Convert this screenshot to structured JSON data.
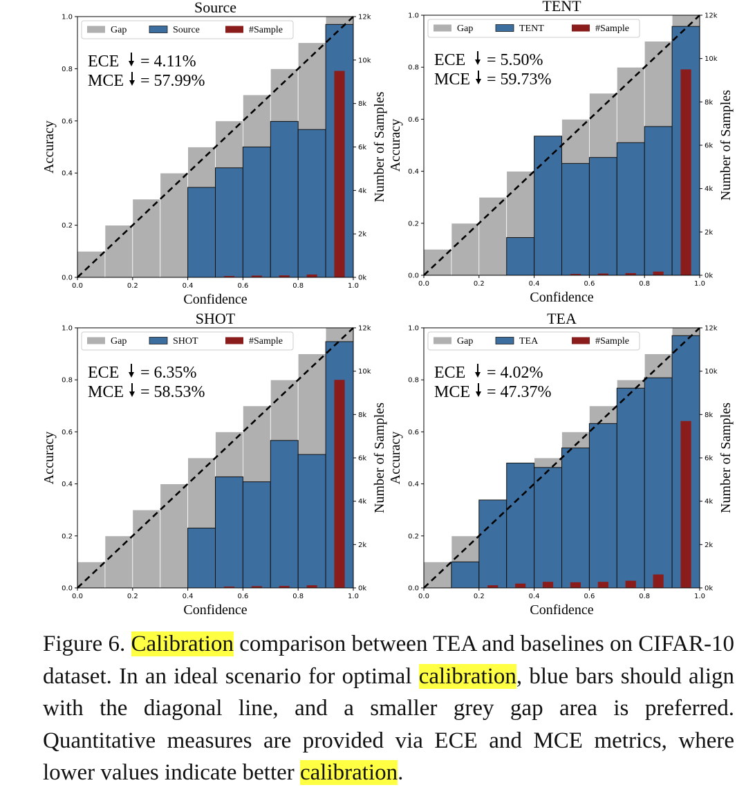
{
  "chart_data": [
    {
      "type": "bar",
      "title": "Source",
      "xlabel": "Confidence",
      "ylabel": "Accuracy",
      "y2label": "Number of Samples",
      "xlim": [
        0,
        1.0
      ],
      "ylim": [
        0,
        1.0
      ],
      "y2lim": [
        0,
        12000
      ],
      "xticks": [
        "0.0",
        "0.2",
        "0.4",
        "0.6",
        "0.8",
        "1.0"
      ],
      "yticks": [
        "0.0",
        "0.2",
        "0.4",
        "0.6",
        "0.8",
        "1.0"
      ],
      "y2ticks": [
        "0k",
        "2k",
        "4k",
        "6k",
        "8k",
        "10k",
        "12k"
      ],
      "legend": [
        "Gap",
        "Source",
        "#Sample"
      ],
      "legend_position": "top-left",
      "ece_text": "ECE",
      "ece_value": "= 4.11%",
      "mce_text": "MCE",
      "mce_value": "= 57.99%",
      "bin_edges": [
        0,
        0.1,
        0.2,
        0.3,
        0.4,
        0.5,
        0.6,
        0.7,
        0.8,
        0.9,
        1.0
      ],
      "accuracy": [
        0,
        0,
        0,
        0,
        0.345,
        0.42,
        0.5,
        0.598,
        0.567,
        0.97
      ],
      "samples": [
        0,
        0,
        0,
        0,
        0,
        60,
        80,
        90,
        130,
        9500
      ],
      "colors": {
        "gap": "#b0b0b0",
        "acc": "#3c6e9f",
        "sample": "#8b1c1c"
      }
    },
    {
      "type": "bar",
      "title": "TENT",
      "xlabel": "Confidence",
      "ylabel": "Accuracy",
      "y2label": "Number of Samples",
      "xlim": [
        0,
        1.0
      ],
      "ylim": [
        0,
        1.0
      ],
      "y2lim": [
        0,
        12000
      ],
      "xticks": [
        "0.0",
        "0.2",
        "0.4",
        "0.6",
        "0.8",
        "1.0"
      ],
      "yticks": [
        "0.0",
        "0.2",
        "0.4",
        "0.6",
        "0.8",
        "1.0"
      ],
      "y2ticks": [
        "0k",
        "2k",
        "4k",
        "6k",
        "8k",
        "10k",
        "12k"
      ],
      "legend": [
        "Gap",
        "TENT",
        "#Sample"
      ],
      "legend_position": "top-left",
      "ece_text": "ECE",
      "ece_value": "= 5.50%",
      "mce_text": "MCE",
      "mce_value": "= 59.73%",
      "bin_edges": [
        0,
        0.1,
        0.2,
        0.3,
        0.4,
        0.5,
        0.6,
        0.7,
        0.8,
        0.9,
        1.0
      ],
      "accuracy": [
        0,
        0,
        0,
        0.145,
        0.535,
        0.43,
        0.453,
        0.51,
        0.572,
        0.957
      ],
      "samples": [
        0,
        0,
        0,
        0,
        0,
        60,
        80,
        100,
        170,
        9500
      ],
      "colors": {
        "gap": "#b0b0b0",
        "acc": "#3c6e9f",
        "sample": "#8b1c1c"
      }
    },
    {
      "type": "bar",
      "title": "SHOT",
      "xlabel": "Confidence",
      "ylabel": "Accuracy",
      "y2label": "Number of Samples",
      "xlim": [
        0,
        1.0
      ],
      "ylim": [
        0,
        1.0
      ],
      "y2lim": [
        0,
        12000
      ],
      "xticks": [
        "0.0",
        "0.2",
        "0.4",
        "0.6",
        "0.8",
        "1.0"
      ],
      "yticks": [
        "0.0",
        "0.2",
        "0.4",
        "0.6",
        "0.8",
        "1.0"
      ],
      "y2ticks": [
        "0k",
        "2k",
        "4k",
        "6k",
        "8k",
        "10k",
        "12k"
      ],
      "legend": [
        "Gap",
        "SHOT",
        "#Sample"
      ],
      "legend_position": "top-left",
      "ece_text": "ECE",
      "ece_value": "= 6.35%",
      "mce_text": "MCE",
      "mce_value": "= 58.53%",
      "bin_edges": [
        0,
        0.1,
        0.2,
        0.3,
        0.4,
        0.5,
        0.6,
        0.7,
        0.8,
        0.9,
        1.0
      ],
      "accuracy": [
        0,
        0,
        0,
        0,
        0.23,
        0.427,
        0.408,
        0.567,
        0.513,
        0.947
      ],
      "samples": [
        0,
        0,
        0,
        0,
        0,
        60,
        80,
        90,
        120,
        9600
      ],
      "colors": {
        "gap": "#b0b0b0",
        "acc": "#3c6e9f",
        "sample": "#8b1c1c"
      }
    },
    {
      "type": "bar",
      "title": "TEA",
      "xlabel": "Confidence",
      "ylabel": "Accuracy",
      "y2label": "Number of Samples",
      "xlim": [
        0,
        1.0
      ],
      "ylim": [
        0,
        1.0
      ],
      "y2lim": [
        0,
        12000
      ],
      "xticks": [
        "0.0",
        "0.2",
        "0.4",
        "0.6",
        "0.8",
        "1.0"
      ],
      "yticks": [
        "0.0",
        "0.2",
        "0.4",
        "0.6",
        "0.8",
        "1.0"
      ],
      "y2ticks": [
        "0k",
        "2k",
        "4k",
        "6k",
        "8k",
        "10k",
        "12k"
      ],
      "legend": [
        "Gap",
        "TEA",
        "#Sample"
      ],
      "legend_position": "top-left",
      "ece_text": "ECE",
      "ece_value": "= 4.02%",
      "mce_text": "MCE",
      "mce_value": "= 47.37%",
      "bin_edges": [
        0,
        0.1,
        0.2,
        0.3,
        0.4,
        0.5,
        0.6,
        0.7,
        0.8,
        0.9,
        1.0
      ],
      "accuracy": [
        0,
        0.1,
        0.338,
        0.48,
        0.463,
        0.538,
        0.632,
        0.768,
        0.808,
        0.97
      ],
      "samples": [
        0,
        0,
        120,
        200,
        280,
        260,
        280,
        330,
        620,
        7700
      ],
      "colors": {
        "gap": "#b0b0b0",
        "acc": "#3c6e9f",
        "sample": "#8b1c1c"
      }
    }
  ],
  "caption": {
    "part1": "Figure 6. ",
    "hl1": "Calibration",
    "part2": " comparison between TEA and baselines on CIFAR-10 dataset.  In an ideal scenario for optimal ",
    "hl2": "calibration",
    "part3": ", blue bars should align with the diagonal line, and a smaller grey gap area is preferred. Quantitative measures are provided via ECE and MCE metrics, where lower values indicate better ",
    "hl3": "calibration",
    "part4": "."
  }
}
